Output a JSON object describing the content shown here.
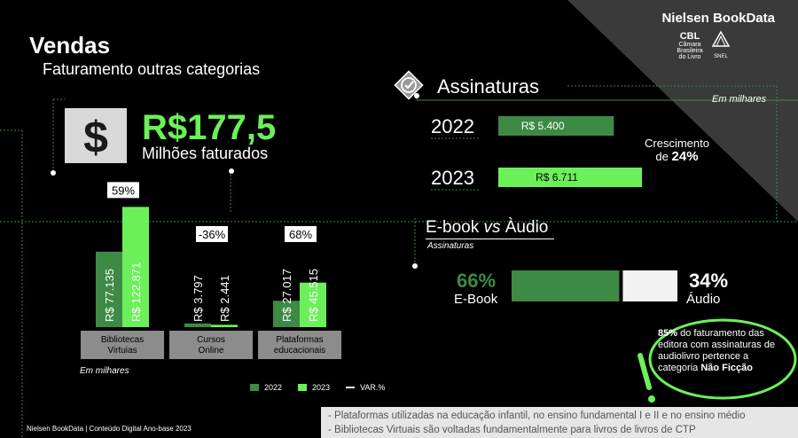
{
  "header": {
    "title": "Vendas",
    "subtitle": "Faturamento outras categorias",
    "brand": "Nielsen BookData",
    "partner1": "Câmara Brasileira do Livro",
    "partner2": "SNEL"
  },
  "highlight": {
    "value": "R$177,5",
    "caption": "Milhões faturados",
    "icon": "dollar-icon"
  },
  "chart_data": [
    {
      "type": "bar",
      "categories": [
        "Bibliotecas Virtuias",
        "Cursos Online",
        "Plataformas educacionais"
      ],
      "series": [
        {
          "name": "2022",
          "values": [
            77.135,
            3.797,
            27.017
          ],
          "labels": [
            "R$ 77.135",
            "R$ 3.797",
            "R$ 27.017"
          ]
        },
        {
          "name": "2023",
          "values": [
            122.871,
            2.441,
            45.515
          ],
          "labels": [
            "R$ 122.871",
            "R$ 2.441",
            "R$ 45.515"
          ]
        }
      ],
      "variation": [
        "59%",
        "-36%",
        "68%"
      ],
      "unit_note": "Em milhares",
      "legend": [
        "2022",
        "2023",
        "VAR.%"
      ],
      "ylim": [
        0,
        125
      ]
    },
    {
      "type": "bar",
      "title": "Assinaturas",
      "orientation": "horizontal",
      "categories": [
        "2022",
        "2023"
      ],
      "values": [
        5.4,
        6.711
      ],
      "labels": [
        "R$ 5.400",
        "R$ 6.711"
      ],
      "unit_note": "Em milhares",
      "growth_text": "Crescimento",
      "growth_prefix": "de",
      "growth_value": "24%"
    },
    {
      "type": "bar",
      "title": "E-book vs Àudio",
      "subtitle": "Assinaturas",
      "orientation": "horizontal-stacked",
      "categories": [
        "E-Book",
        "Áudio"
      ],
      "values": [
        66,
        34
      ],
      "labels": [
        "66%",
        "34%"
      ]
    }
  ],
  "ebook": {
    "title_a": "E-book ",
    "title_vs": "vs",
    "title_b": " Àudio"
  },
  "callout": {
    "p1_bold": "85%",
    "p1": " do faturamento das editora  com assinaturas de audiolivro pertence a categoria ",
    "p2_bold": "Não Ficção"
  },
  "footer": {
    "left": "Nielsen BookData  | Conteúdo Digital Ano-base 2023",
    "note1": "- Plataformas utilizadas na educação infantil, no ensino fundamental I e II e no ensino médio",
    "note2": "- Bibliotecas Virtuais são voltadas fundamentalmente para livros de livros de CTP"
  },
  "colors": {
    "dark_green": "#3d8a45",
    "light_green": "#6cf05a",
    "gray": "#8c8c8c",
    "white": "#ffffff",
    "background": "#000000"
  }
}
